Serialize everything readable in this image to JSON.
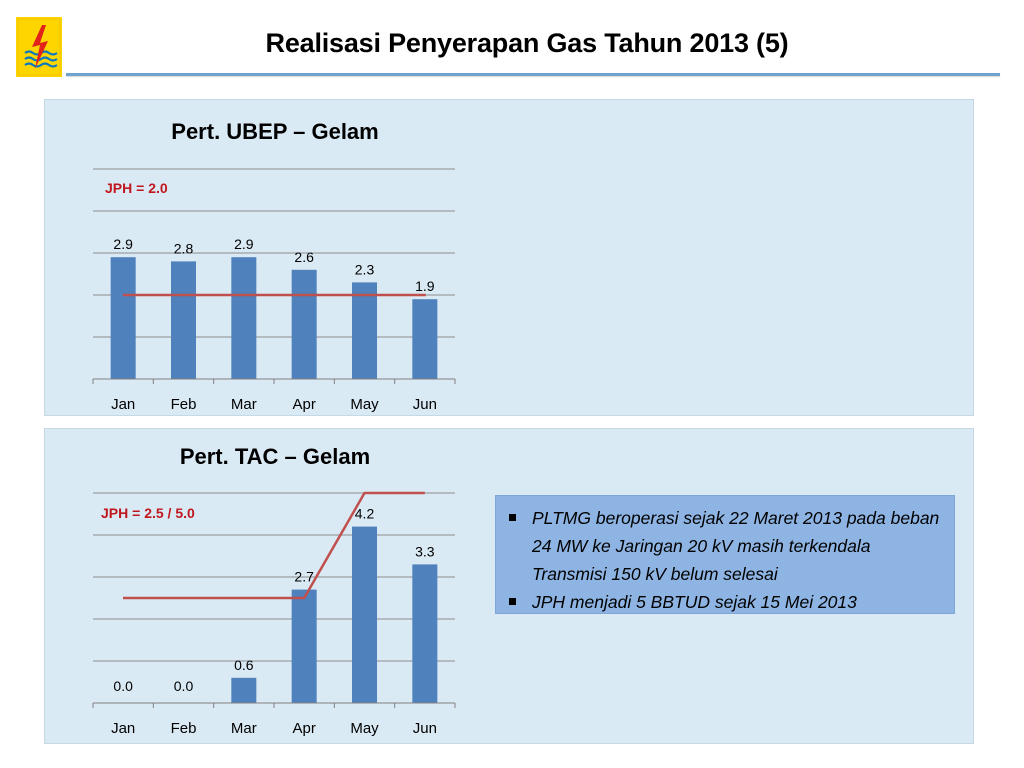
{
  "page": {
    "title": "Realisasi Penyerapan Gas Tahun 2013 (5)"
  },
  "logo": {
    "icon": "pln-lightning-logo-icon",
    "colors": {
      "background": "#ffd500",
      "bolt": "#e2231a",
      "waves": "#0a79bf"
    }
  },
  "colors": {
    "bar": "#4f81bd",
    "jph_line": "#c0504d",
    "panel_bg": "#daeaf4",
    "note_bg": "#8eb4e3",
    "title_rule": "#6fa3cf"
  },
  "chart_data": [
    {
      "type": "bar",
      "title": "Pert. UBEP – Gelam",
      "annotation": "JPH = 2.0",
      "categories": [
        "Jan",
        "Feb",
        "Mar",
        "Apr",
        "May",
        "Jun"
      ],
      "values": [
        2.9,
        2.8,
        2.9,
        2.6,
        2.3,
        1.9
      ],
      "data_labels": [
        "2.9",
        "2.8",
        "2.9",
        "2.6",
        "2.3",
        "1.9"
      ],
      "reference_line": {
        "values": [
          2.0,
          2.0,
          2.0,
          2.0,
          2.0,
          2.0
        ]
      },
      "ylim": [
        0,
        5
      ],
      "grid": true,
      "xlabel": "",
      "ylabel": ""
    },
    {
      "type": "bar",
      "title": "Pert. TAC – Gelam",
      "annotation": "JPH = 2.5 / 5.0",
      "categories": [
        "Jan",
        "Feb",
        "Mar",
        "Apr",
        "May",
        "Jun"
      ],
      "values": [
        0.0,
        0.0,
        0.6,
        2.7,
        4.2,
        3.3
      ],
      "data_labels": [
        "0.0",
        "0.0",
        "0.6",
        "2.7",
        "4.2",
        "3.3"
      ],
      "reference_line": {
        "values": [
          2.5,
          2.5,
          2.5,
          2.5,
          5.0,
          5.0
        ]
      },
      "ylim": [
        0,
        5
      ],
      "grid": true,
      "xlabel": "",
      "ylabel": ""
    }
  ],
  "note": {
    "items": [
      "PLTMG beroperasi sejak 22 Maret 2013 pada beban 24 MW ke Jaringan 20 kV masih terkendala Transmisi 150 kV belum selesai",
      "JPH menjadi 5 BBTUD sejak 15 Mei 2013"
    ]
  }
}
